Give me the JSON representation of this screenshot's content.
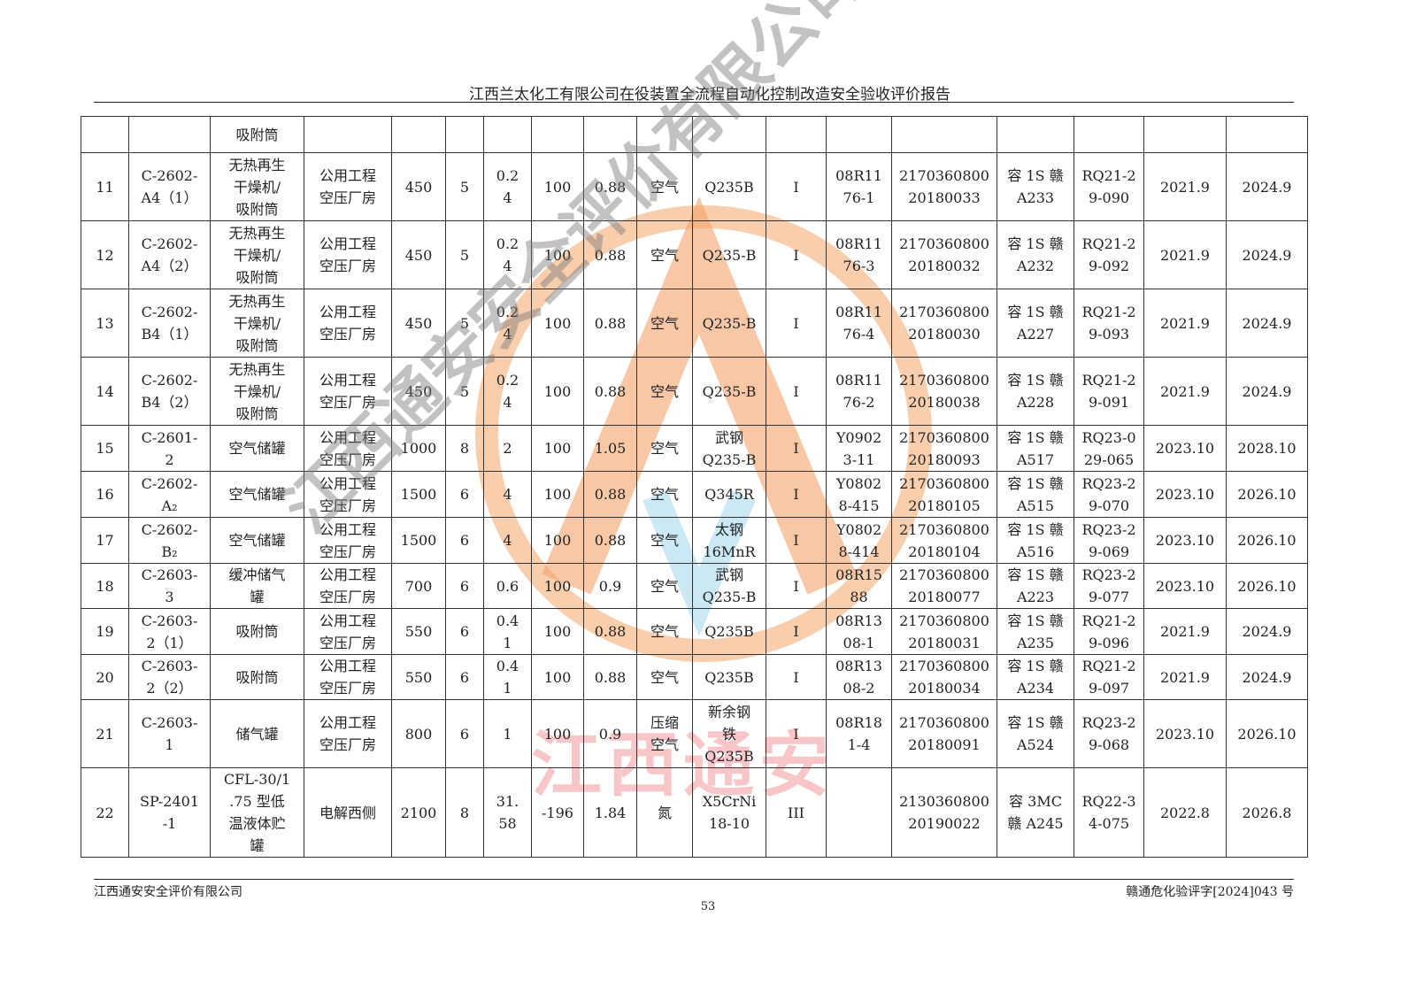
{
  "header": {
    "title": "江西兰太化工有限公司在役装置全流程自动化控制改造安全验收评价报告"
  },
  "watermark": {
    "diagonal_text": "江西通安安全评价有限公司",
    "red_text": "江西通安",
    "logo_color": "#f4a46a"
  },
  "table": {
    "rows": [
      [
        "",
        "",
        "吸附筒",
        "",
        "",
        "",
        "",
        "",
        "",
        "",
        "",
        "",
        "",
        "",
        "",
        "",
        "",
        ""
      ],
      [
        "11",
        "C-2602-\nA4（1）",
        "无热再生\n干燥机/\n吸附筒",
        "公用工程\n空压厂房",
        "450",
        "5",
        "0.2\n4",
        "100",
        "0.88",
        "空气",
        "Q235B",
        "I",
        "08R11\n76-1",
        "2170360800\n20180033",
        "容 1S 赣\nA233",
        "RQ21-2\n9-090",
        "2021.9",
        "2024.9"
      ],
      [
        "12",
        "C-2602-\nA4（2）",
        "无热再生\n干燥机/\n吸附筒",
        "公用工程\n空压厂房",
        "450",
        "5",
        "0.2\n4",
        "100",
        "0.88",
        "空气",
        "Q235-B",
        "I",
        "08R11\n76-3",
        "2170360800\n20180032",
        "容 1S 赣\nA232",
        "RQ21-2\n9-092",
        "2021.9",
        "2024.9"
      ],
      [
        "13",
        "C-2602-\nB4（1）",
        "无热再生\n干燥机/\n吸附筒",
        "公用工程\n空压厂房",
        "450",
        "5",
        "0.2\n4",
        "100",
        "0.88",
        "空气",
        "Q235-B",
        "I",
        "08R11\n76-4",
        "2170360800\n20180030",
        "容 1S 赣\nA227",
        "RQ21-2\n9-093",
        "2021.9",
        "2024.9"
      ],
      [
        "14",
        "C-2602-\nB4（2）",
        "无热再生\n干燥机/\n吸附筒",
        "公用工程\n空压厂房",
        "450",
        "5",
        "0.2\n4",
        "100",
        "0.88",
        "空气",
        "Q235-B",
        "I",
        "08R11\n76-2",
        "2170360800\n20180038",
        "容 1S 赣\nA228",
        "RQ21-2\n9-091",
        "2021.9",
        "2024.9"
      ],
      [
        "15",
        "C-2601-\n2",
        "空气储罐",
        "公用工程\n空压厂房",
        "1000",
        "8",
        "2",
        "100",
        "1.05",
        "空气",
        "武钢\nQ235-B",
        "I",
        "Y0902\n3-11",
        "2170360800\n20180093",
        "容 1S 赣\nA517",
        "RQ23-0\n29-065",
        "2023.10",
        "2028.10"
      ],
      [
        "16",
        "C-2602-\nA₂",
        "空气储罐",
        "公用工程\n空压厂房",
        "1500",
        "6",
        "4",
        "100",
        "0.88",
        "空气",
        "Q345R",
        "I",
        "Y0802\n8-415",
        "2170360800\n20180105",
        "容 1S 赣\nA515",
        "RQ23-2\n9-070",
        "2023.10",
        "2026.10"
      ],
      [
        "17",
        "C-2602-\nB₂",
        "空气储罐",
        "公用工程\n空压厂房",
        "1500",
        "6",
        "4",
        "100",
        "0.88",
        "空气",
        "太钢\n16MnR",
        "I",
        "Y0802\n8-414",
        "2170360800\n20180104",
        "容 1S 赣\nA516",
        "RQ23-2\n9-069",
        "2023.10",
        "2026.10"
      ],
      [
        "18",
        "C-2603-\n3",
        "缓冲储气\n罐",
        "公用工程\n空压厂房",
        "700",
        "6",
        "0.6",
        "100",
        "0.9",
        "空气",
        "武钢\nQ235-B",
        "I",
        "08R15\n88",
        "2170360800\n20180077",
        "容 1S 赣\nA223",
        "RQ23-2\n9-077",
        "2023.10",
        "2026.10"
      ],
      [
        "19",
        "C-2603-\n2（1）",
        "吸附筒",
        "公用工程\n空压厂房",
        "550",
        "6",
        "0.4\n1",
        "100",
        "0.88",
        "空气",
        "Q235B",
        "I",
        "08R13\n08-1",
        "2170360800\n20180031",
        "容 1S 赣\nA235",
        "RQ21-2\n9-096",
        "2021.9",
        "2024.9"
      ],
      [
        "20",
        "C-2603-\n2（2）",
        "吸附筒",
        "公用工程\n空压厂房",
        "550",
        "6",
        "0.4\n1",
        "100",
        "0.88",
        "空气",
        "Q235B",
        "I",
        "08R13\n08-2",
        "2170360800\n20180034",
        "容 1S 赣\nA234",
        "RQ21-2\n9-097",
        "2021.9",
        "2024.9"
      ],
      [
        "21",
        "C-2603-\n1",
        "储气罐",
        "公用工程\n空压厂房",
        "800",
        "6",
        "1",
        "100",
        "0.9",
        "压缩\n空气",
        "新余钢\n铁\nQ235B",
        "I",
        "08R18\n1-4",
        "2170360800\n20180091",
        "容 1S 赣\nA524",
        "RQ23-2\n9-068",
        "2023.10",
        "2026.10"
      ],
      [
        "22",
        "SP-2401\n-1",
        "CFL-30/1\n.75 型低\n温液体贮\n罐",
        "电解西侧",
        "2100",
        "8",
        "31.\n58",
        "-196",
        "1.84",
        "氮",
        "X5CrNi\n18-10",
        "III",
        "",
        "2130360800\n20190022",
        "容 3MC\n赣 A245",
        "RQ22-3\n4-075",
        "2022.8",
        "2026.8"
      ]
    ]
  },
  "footer": {
    "company": "江西通安安全评价有限公司",
    "doc_number": "赣通危化验评字[2024]043 号",
    "page_number": "53"
  }
}
